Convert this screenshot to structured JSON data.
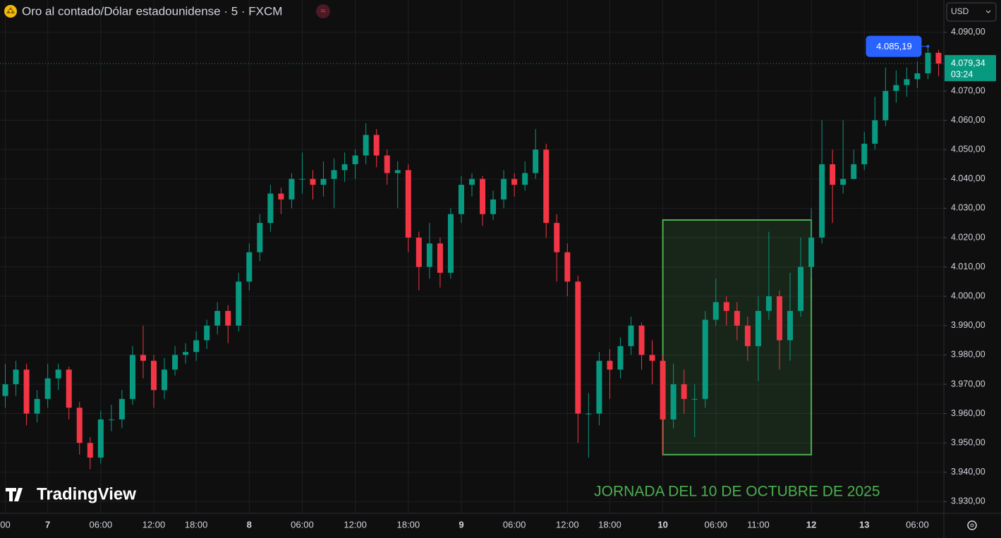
{
  "chart_data": {
    "type": "candlestick",
    "title": "Oro al contado/Dólar estadounidense · 5 · FXCM",
    "currency": "USD",
    "watermark": "TradingView",
    "annotation": "JORNADA DEL 10 DE OCTUBRE DE 2025",
    "up_color": "#089981",
    "down_color": "#f23645",
    "grid": true,
    "categories": [
      "00",
      null,
      null,
      null,
      "7",
      null,
      null,
      null,
      null,
      "06:00",
      null,
      null,
      null,
      null,
      "12:00",
      null,
      null,
      null,
      "18:00",
      null,
      null,
      null,
      null,
      "8",
      null,
      null,
      null,
      null,
      "06:00",
      null,
      null,
      null,
      null,
      "12:00",
      null,
      null,
      null,
      null,
      "18:00",
      null,
      null,
      null,
      null,
      "9",
      null,
      null,
      null,
      null,
      "06:00",
      null,
      null,
      null,
      null,
      "12:00",
      null,
      null,
      null,
      "18:00",
      null,
      null,
      null,
      null,
      "10",
      null,
      null,
      null,
      null,
      "06:00",
      null,
      null,
      null,
      "11:00",
      null,
      null,
      null,
      null,
      "12",
      null,
      null,
      null,
      null,
      "13",
      null,
      null,
      null,
      null,
      "06:00",
      null,
      null
    ],
    "open": [
      3966,
      3970,
      3975,
      3960,
      3965,
      3972,
      3975,
      3962,
      3950,
      3945,
      3958,
      3958,
      3965,
      3980,
      3978,
      3968,
      3975,
      3980,
      3981,
      3985,
      3990,
      3995,
      3990,
      4005,
      4015,
      4025,
      4035,
      4033,
      4040,
      4040,
      4038,
      4040,
      4043,
      4045,
      4048,
      4055,
      4048,
      4042,
      4043,
      4020,
      4010,
      4018,
      4008,
      4028,
      4038,
      4040,
      4028,
      4033,
      4040,
      4038,
      4042,
      4050,
      4025,
      4015,
      4005,
      3960,
      3960,
      3978,
      3975,
      3983,
      3990,
      3980,
      3978,
      3958,
      3970,
      3965,
      3965,
      3992,
      3998,
      3995,
      3990,
      3983,
      3995,
      4000,
      3985,
      3995,
      4010,
      4020,
      4045,
      4038,
      4040,
      4045,
      4052,
      4060,
      4070,
      4072,
      4074,
      4076,
      4083
    ],
    "high": [
      3977,
      3978,
      3977,
      3968,
      3977,
      3977,
      3976,
      3964,
      3952,
      3961,
      3963,
      3968,
      3983,
      3990,
      3980,
      3979,
      3983,
      3984,
      3988,
      3992,
      3998,
      3997,
      4008,
      4018,
      4028,
      4038,
      4037,
      4042,
      4049,
      4043,
      4046,
      4047,
      4049,
      4050,
      4059,
      4057,
      4050,
      4046,
      4045,
      4022,
      4025,
      4020,
      4030,
      4041,
      4042,
      4041,
      4036,
      4043,
      4042,
      4046,
      4057,
      4052,
      4028,
      4018,
      4007,
      3967,
      3981,
      3982,
      3986,
      3993,
      3991,
      3985,
      3980,
      3977,
      3975,
      3970,
      3995,
      4006,
      4000,
      3998,
      3993,
      4000,
      4022,
      4002,
      4008,
      4020,
      4030,
      4060,
      4050,
      4060,
      4050,
      4056,
      4068,
      4078,
      4077,
      4078,
      4080,
      4085.19,
      4084
    ],
    "low": [
      3962,
      3966,
      3956,
      3957,
      3962,
      3968,
      3958,
      3946,
      3941,
      3943,
      3954,
      3955,
      3963,
      3972,
      3962,
      3965,
      3973,
      3977,
      3978,
      3982,
      3987,
      3984,
      3988,
      4002,
      4012,
      4022,
      4028,
      4030,
      4035,
      4033,
      4034,
      4030,
      4039,
      4040,
      4045,
      4044,
      4038,
      4030,
      4015,
      4002,
      4006,
      4003,
      4006,
      4025,
      4034,
      4024,
      4026,
      4030,
      4034,
      4036,
      4040,
      4020,
      4005,
      4000,
      3950,
      3945,
      3956,
      3965,
      3972,
      3980,
      3975,
      3970,
      3946,
      3955,
      3960,
      3952,
      3962,
      3990,
      3990,
      3985,
      3978,
      3971,
      3992,
      3975,
      3978,
      3993,
      4006,
      4018,
      4025,
      4035,
      4040,
      4043,
      4050,
      4058,
      4066,
      4068,
      4071,
      4074,
      4075
    ],
    "close": [
      3970,
      3975,
      3960,
      3965,
      3972,
      3975,
      3962,
      3950,
      3945,
      3958,
      3958,
      3965,
      3980,
      3978,
      3968,
      3975,
      3980,
      3981,
      3985,
      3990,
      3995,
      3990,
      4005,
      4015,
      4025,
      4035,
      4033,
      4040,
      4040,
      4038,
      4040,
      4043,
      4045,
      4048,
      4055,
      4048,
      4042,
      4043,
      4020,
      4010,
      4018,
      4008,
      4028,
      4038,
      4040,
      4028,
      4033,
      4040,
      4038,
      4042,
      4050,
      4025,
      4015,
      4005,
      3960,
      3960,
      3978,
      3975,
      3983,
      3990,
      3980,
      3978,
      3958,
      3970,
      3965,
      3965,
      3992,
      3998,
      3995,
      3990,
      3983,
      3995,
      4000,
      3985,
      3995,
      4010,
      4020,
      4045,
      4038,
      4040,
      4045,
      4052,
      4060,
      4070,
      4072,
      4074,
      4076,
      4083,
      4079.34
    ],
    "ylim": [
      3926,
      4101
    ],
    "yticks": [
      {
        "value": 3930,
        "label": "3.930,00"
      },
      {
        "value": 3940,
        "label": "3.940,00"
      },
      {
        "value": 3950,
        "label": "3.950,00"
      },
      {
        "value": 3960,
        "label": "3.960,00"
      },
      {
        "value": 3970,
        "label": "3.970,00"
      },
      {
        "value": 3980,
        "label": "3.980,00"
      },
      {
        "value": 3990,
        "label": "3.990,00"
      },
      {
        "value": 4000,
        "label": "4.000,00"
      },
      {
        "value": 4010,
        "label": "4.010,00"
      },
      {
        "value": 4020,
        "label": "4.020,00"
      },
      {
        "value": 4030,
        "label": "4.030,00"
      },
      {
        "value": 4040,
        "label": "4.040,00"
      },
      {
        "value": 4050,
        "label": "4.050,00"
      },
      {
        "value": 4060,
        "label": "4.060,00"
      },
      {
        "value": 4070,
        "label": "4.070,00"
      },
      {
        "value": 4090,
        "label": "4.090,00"
      }
    ],
    "last_price": {
      "value": 4079.34,
      "label": "4.079,34",
      "countdown": "03:24",
      "color": "#089981"
    },
    "high_marker": {
      "value": 4085.19,
      "label": "4.085,19",
      "color": "#2962ff"
    },
    "highlight": {
      "span": [
        "10",
        "12"
      ],
      "ylim": [
        3946,
        4026
      ],
      "color": "#4caf50"
    }
  }
}
